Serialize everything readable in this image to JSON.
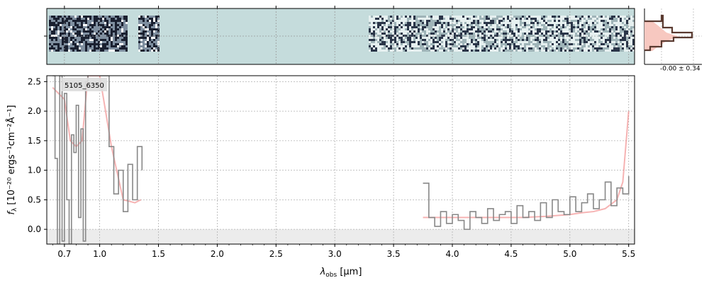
{
  "chart_data": {
    "type": "line",
    "label": "5105_6350",
    "xlabel_main": "λ",
    "xlabel_sub": "obs",
    "xlabel_unit": " [μm]",
    "ylabel_main": "f",
    "ylabel_sub": "λ",
    "ylabel_unit": "[10⁻²⁰ ergs⁻¹cm⁻²Å⁻¹]",
    "xlim": [
      0.55,
      5.55
    ],
    "ylim": [
      -0.25,
      2.6
    ],
    "x_ticks": [
      0.7,
      1.0,
      1.5,
      2.0,
      2.5,
      3.0,
      3.5,
      4.0,
      4.5,
      5.0,
      5.5
    ],
    "x_tick_labels": [
      "0.7",
      "1.0",
      "1.5",
      "2.0",
      "2.5",
      "3.0",
      "3.5",
      "4.0",
      "4.5",
      "5.0",
      "5.5"
    ],
    "y_ticks": [
      0.0,
      0.5,
      1.0,
      1.5,
      2.0,
      2.5
    ],
    "y_tick_labels": [
      "0.0",
      "0.5",
      "1.0",
      "1.5",
      "2.0",
      "2.5"
    ],
    "grid": true,
    "colors": {
      "spectrum": "#888888",
      "model": "#f08080",
      "panel2d_bg": "#c5dcdc",
      "hist_fill": "#f7c8c0",
      "hist_line": "#5a3a30",
      "zero_band": "#ececec"
    },
    "segments": [
      {
        "name": "blue",
        "x": [
          0.6,
          0.62,
          0.64,
          0.66,
          0.68,
          0.7,
          0.72,
          0.74,
          0.76,
          0.78,
          0.8,
          0.82,
          0.84,
          0.86,
          0.88,
          0.9
        ],
        "y": [
          2.6,
          1.2,
          -0.25,
          2.6,
          -0.2,
          2.3,
          0.5,
          -0.25,
          1.6,
          1.3,
          2.1,
          0.2,
          1.7,
          -0.2,
          2.5,
          2.6
        ]
      },
      {
        "name": "mid",
        "x": [
          1.0,
          1.04,
          1.08,
          1.12,
          1.16,
          1.2,
          1.24,
          1.28,
          1.32,
          1.36
        ],
        "y": [
          2.6,
          2.6,
          1.4,
          0.6,
          1.0,
          0.3,
          1.1,
          0.5,
          1.4,
          1.0
        ]
      },
      {
        "name": "red",
        "x": [
          3.75,
          3.8,
          3.85,
          3.9,
          3.95,
          4.0,
          4.05,
          4.1,
          4.15,
          4.2,
          4.25,
          4.3,
          4.35,
          4.4,
          4.45,
          4.5,
          4.55,
          4.6,
          4.65,
          4.7,
          4.75,
          4.8,
          4.85,
          4.9,
          4.95,
          5.0,
          5.05,
          5.1,
          5.15,
          5.2,
          5.25,
          5.3,
          5.35,
          5.4,
          5.45,
          5.5
        ],
        "y": [
          0.78,
          0.2,
          0.05,
          0.3,
          0.1,
          0.25,
          0.15,
          0.0,
          0.3,
          0.2,
          0.1,
          0.35,
          0.15,
          0.25,
          0.3,
          0.1,
          0.4,
          0.2,
          0.3,
          0.15,
          0.45,
          0.2,
          0.5,
          0.3,
          0.25,
          0.55,
          0.3,
          0.45,
          0.6,
          0.35,
          0.5,
          0.8,
          0.4,
          0.7,
          0.6,
          0.9
        ]
      }
    ],
    "model": {
      "x": [
        0.6,
        0.7,
        0.75,
        0.8,
        0.85,
        0.9,
        1.0,
        1.1,
        1.2,
        1.3,
        1.35,
        3.75,
        3.9,
        4.0,
        4.2,
        4.4,
        4.6,
        4.8,
        5.0,
        5.1,
        5.2,
        5.3,
        5.4,
        5.45,
        5.5
      ],
      "y": [
        2.4,
        2.2,
        1.5,
        1.4,
        1.5,
        2.6,
        2.6,
        1.4,
        0.5,
        0.45,
        0.5,
        0.2,
        0.2,
        0.2,
        0.2,
        0.2,
        0.2,
        0.22,
        0.25,
        0.28,
        0.3,
        0.35,
        0.5,
        0.8,
        2.0
      ]
    },
    "histogram_label": "-0.00 ± 0.34"
  }
}
